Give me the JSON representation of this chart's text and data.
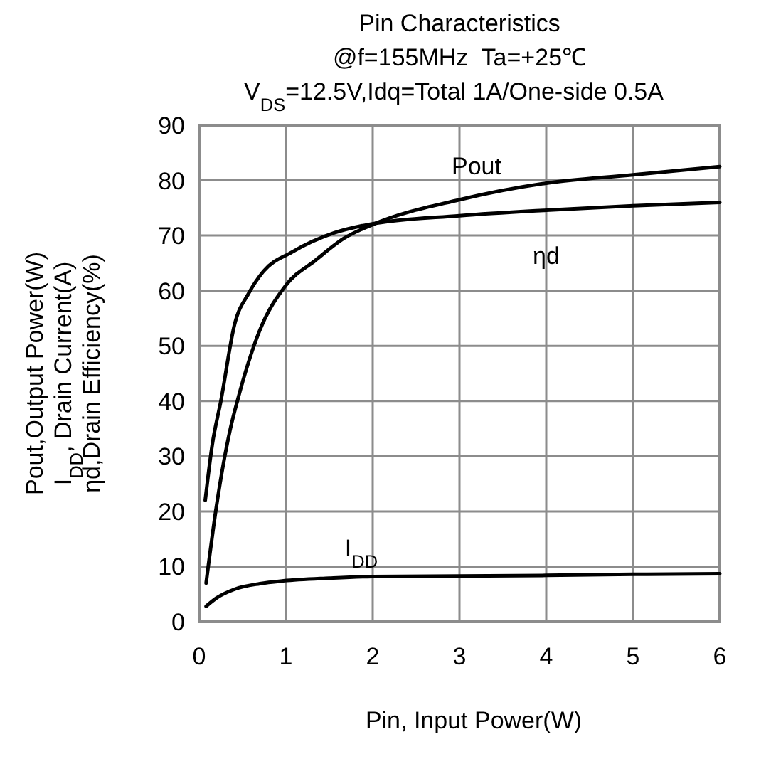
{
  "chart_data": {
    "type": "line",
    "title": "Pin Characteristics",
    "subtitle": "@f=155MHz  Ta=+25℃\nV$_{DS}$=12.5V,Idq=Total 1A/One-side 0.5A",
    "xlabel": "Pin, Input Power(W)",
    "ylabel": "Pout,Output Power(W)\nI$_{DD}$, Drain Current(A)\nηd,Drain Efficiency(%)",
    "series": [
      {
        "name": "Pout",
        "color": "#000000",
        "x": [
          0.08,
          0.2,
          0.36,
          0.44,
          0.69,
          1.0,
          1.34,
          1.67,
          2.0,
          3.0,
          4.0,
          5.0,
          6.0
        ],
        "values": [
          7,
          21,
          35,
          40,
          52.5,
          61,
          65.5,
          69.5,
          72,
          76.5,
          79.5,
          81,
          82.5
        ]
      },
      {
        "name": "ηd",
        "color": "#000000",
        "x": [
          0.07,
          0.15,
          0.25,
          0.41,
          0.57,
          0.74,
          1.07,
          1.56,
          1.95,
          3.0,
          4.0,
          5.0,
          6.0
        ],
        "values": [
          22,
          32,
          40,
          54,
          59.5,
          63.5,
          67,
          70.5,
          72,
          73.6,
          74.6,
          75.4,
          76
        ]
      },
      {
        "name": "I$_{DD}$",
        "color": "#000000",
        "x": [
          0.08,
          0.2,
          0.41,
          0.7,
          0.97,
          1.5,
          2.0,
          3.0,
          4.0,
          5.0,
          6.0
        ],
        "values": [
          2.8,
          4.3,
          5.9,
          6.9,
          7.4,
          7.9,
          8.2,
          8.3,
          8.4,
          8.6,
          8.7
        ]
      }
    ],
    "xlim": [
      0,
      6
    ],
    "xticks": [
      0,
      1,
      2,
      3,
      4,
      5,
      6
    ],
    "ylim": [
      0,
      90
    ],
    "yticks": [
      0,
      10,
      20,
      30,
      40,
      50,
      60,
      70,
      80,
      90
    ],
    "grid": true,
    "marker": "none",
    "line_style": "solid"
  }
}
